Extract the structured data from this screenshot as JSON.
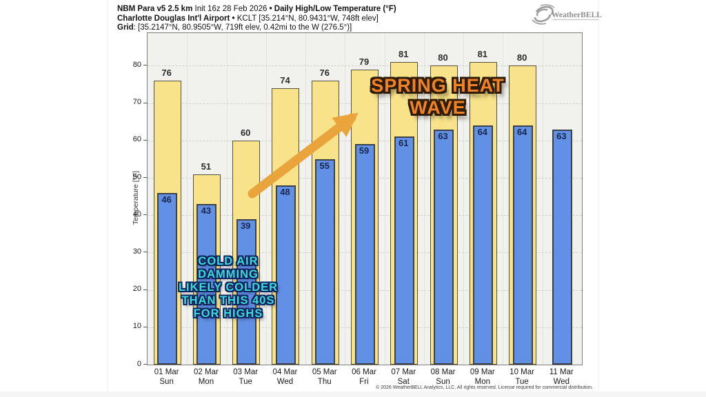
{
  "header": {
    "line1": {
      "product": "NBM Para v5 2.5 km",
      "init": " Init 16z 28 Feb 2026 ",
      "sep": "•",
      "title": " Daily High/Low Temperature (°F)"
    },
    "line2": {
      "station": "Charlotte Douglas Int'l Airport",
      "sep": " • ",
      "details": "KCLT [35.214°N, 80.9431°W, 748ft elev]"
    },
    "line3": {
      "label": "Grid",
      "details": ": [35.2147°N, 80.9505°W, 719ft elev, 0.42mi to the W (276.5°)]"
    }
  },
  "logo": {
    "text": "WeatherBELL"
  },
  "chart_data": {
    "type": "bar",
    "title": "Daily High/Low Temperature (°F)",
    "ylabel": "Temperature [°F]",
    "categories": [
      "01 Mar",
      "02 Mar",
      "03 Mar",
      "04 Mar",
      "05 Mar",
      "06 Mar",
      "07 Mar",
      "08 Mar",
      "09 Mar",
      "10 Mar",
      "11 Mar"
    ],
    "weekdays": [
      "Sun",
      "Mon",
      "Tue",
      "Wed",
      "Thu",
      "Fri",
      "Sat",
      "Sun",
      "Mon",
      "Tue",
      "Wed"
    ],
    "series": [
      {
        "name": "High",
        "color": "#f8e28a",
        "values": [
          76,
          51,
          60,
          74,
          76,
          79,
          81,
          80,
          81,
          80,
          null
        ]
      },
      {
        "name": "Low",
        "color": "#6290e4",
        "values": [
          46,
          43,
          39,
          48,
          55,
          59,
          61,
          63,
          64,
          64,
          63
        ]
      }
    ],
    "ylim": [
      0,
      88.75
    ],
    "yticks": [
      0,
      10,
      20,
      30,
      40,
      50,
      60,
      70,
      80
    ],
    "grid": "horizontal-dashed",
    "legend": "none"
  },
  "annotations": {
    "spring_heat": {
      "line1": "SPRING HEAT",
      "line2": "WAVE",
      "color": "#f08228"
    },
    "cold_air": {
      "line1": "COLD AIR",
      "line2": "DAMMING",
      "line3": "LIKELY COLDER",
      "line4": "THAN THIS 40S",
      "line5": "FOR HIGHS",
      "color": "#3fd9d9"
    },
    "arrow": {
      "color": "#e9a43c"
    }
  },
  "footer": {
    "copyright": "© 2026 WeatherBELL Analytics, LLC. All rights reserved. License required for commercial distribution."
  }
}
